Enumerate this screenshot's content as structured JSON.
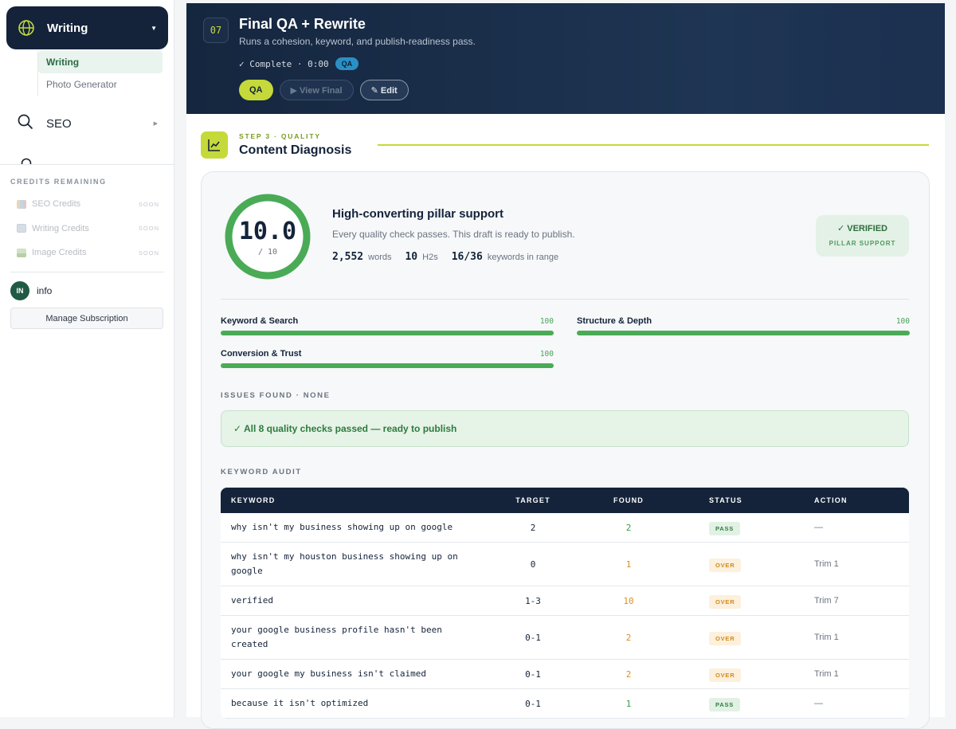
{
  "sidebar": {
    "nav_writing": "Writing",
    "sub_items": [
      "Writing",
      "Photo Generator"
    ],
    "nav_seo": "SEO",
    "credits_heading": "CREDITS REMAINING",
    "credits": [
      {
        "label": "SEO Credits",
        "status": "SOON",
        "icon": "bar-chart-icon"
      },
      {
        "label": "Writing Credits",
        "status": "SOON",
        "icon": "document-icon"
      },
      {
        "label": "Image Credits",
        "status": "SOON",
        "icon": "image-icon"
      }
    ],
    "user_initials": "IN",
    "user_name": "info",
    "manage_label": "Manage Subscription"
  },
  "hero": {
    "step": "07",
    "title": "Final QA + Rewrite",
    "subtitle": "Runs a cohesion, keyword, and publish-readiness pass.",
    "status": "✓ Complete · 0:00",
    "status_badge": "QA",
    "buttons": {
      "qa": "QA",
      "view": "▶ View Final",
      "edit": "✎ Edit"
    }
  },
  "section": {
    "kicker": "STEP 3 · QUALITY",
    "title": "Content Diagnosis"
  },
  "diagnosis": {
    "score": "10.0",
    "score_denominator": "/ 10",
    "score_fraction": 1.0,
    "verdict": "High-converting pillar support",
    "verdict_sub": "Every quality check passes. This draft is ready to publish.",
    "stats": [
      {
        "value": "2,552",
        "label": "words"
      },
      {
        "value": "10",
        "label": "H2s"
      },
      {
        "value": "16/36",
        "label": "keywords in range"
      }
    ],
    "badge_title": "✓ VERIFIED",
    "badge_sub": "PILLAR SUPPORT",
    "categories": [
      {
        "label": "Keyword & Search",
        "score": "100"
      },
      {
        "label": "Structure & Depth",
        "score": "100"
      },
      {
        "label": "Conversion & Trust",
        "score": "100"
      }
    ],
    "issues_label": "ISSUES FOUND · NONE",
    "issues_message": "✓ All 8 quality checks passed — ready to publish",
    "audit_label": "KEYWORD AUDIT"
  },
  "audit": {
    "headers": {
      "keyword": "KEYWORD",
      "target": "TARGET",
      "found": "FOUND",
      "status": "STATUS",
      "action": "ACTION"
    },
    "rows": [
      {
        "keyword": "why isn't my business showing up on google",
        "target": "2",
        "found": "2",
        "status": "PASS",
        "action": "—"
      },
      {
        "keyword": "why isn't my houston business showing up on google",
        "target": "0",
        "found": "1",
        "status": "OVER",
        "action": "Trim 1"
      },
      {
        "keyword": "verified",
        "target": "1-3",
        "found": "10",
        "status": "OVER",
        "action": "Trim 7"
      },
      {
        "keyword": "your google business profile hasn't been created",
        "target": "0-1",
        "found": "2",
        "status": "OVER",
        "action": "Trim 1"
      },
      {
        "keyword": "your google my business isn't claimed",
        "target": "0-1",
        "found": "2",
        "status": "OVER",
        "action": "Trim 1"
      },
      {
        "keyword": "because it isn't optimized",
        "target": "0-1",
        "found": "1",
        "status": "PASS",
        "action": "—"
      }
    ]
  },
  "colors": {
    "navy": "#14233a",
    "lime": "#c5d93a",
    "green": "#4aab56",
    "amber": "#d99024"
  }
}
